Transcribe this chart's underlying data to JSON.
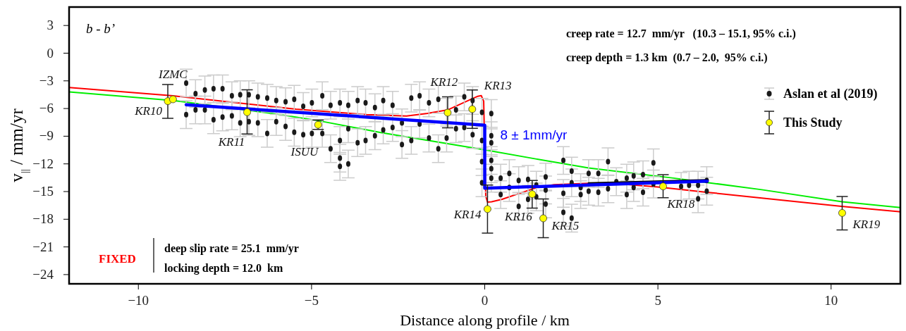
{
  "chart_data": {
    "type": "scatter",
    "xlabel": "Distance along profile / km",
    "ylabel": "v$_{||}$ / mm/yr",
    "xlim": [
      -12,
      12
    ],
    "ylim": [
      -25,
      5
    ],
    "xticks": [
      {
        "value": -10,
        "label": "−10"
      },
      {
        "value": -5,
        "label": "−5"
      },
      0,
      5,
      10
    ],
    "yticks": [
      3,
      0,
      {
        "value": -3,
        "label": "−3"
      },
      {
        "value": -6,
        "label": "−6"
      },
      {
        "value": -9,
        "label": "−9"
      },
      {
        "value": -12,
        "label": "−12"
      },
      {
        "value": -15,
        "label": "−15"
      },
      {
        "value": -18,
        "label": "−18"
      },
      {
        "value": -21,
        "label": "−21"
      },
      {
        "value": -24,
        "label": "−24"
      }
    ],
    "grid": false,
    "legend": "top right",
    "series": [
      {
        "type": "line",
        "color": "#00ee00",
        "x": [
          -12,
          -9,
          -6,
          -4.83,
          -3,
          -1.5,
          0,
          1.5,
          3,
          5.45,
          8,
          10.32,
          12
        ],
        "values": [
          -4.19,
          -5.13,
          -6.6,
          -7.3,
          -8.6,
          -9.54,
          -10.48,
          -11.48,
          -12.45,
          -13.54,
          -14.8,
          -16.1,
          -16.73
        ]
      },
      {
        "type": "line",
        "color": "#ff0000",
        "x": [
          -12,
          -9,
          -6.86,
          -5.45,
          -3.41,
          -2.26,
          -1.65,
          -1.07,
          -0.55,
          -0.2,
          -0.1,
          -0.03,
          0,
          0.03,
          0.08,
          0.2,
          0.5,
          1,
          1.5,
          2,
          3,
          4,
          5,
          6.4,
          8,
          10.3,
          12
        ],
        "values": [
          -3.73,
          -4.62,
          -5.49,
          -6.07,
          -6.66,
          -6.81,
          -6.53,
          -6.15,
          -5.26,
          -4.67,
          -4.6,
          -5.2,
          -10.5,
          -15.5,
          -16.15,
          -16.1,
          -15.84,
          -15.2,
          -14.57,
          -14.26,
          -14.1,
          -14.2,
          -14.5,
          -15.07,
          -15.7,
          -16.6,
          -17.19
        ]
      },
      {
        "name": "Aslan et al (2019)",
        "color": "#1a1a1a",
        "marker": "circle",
        "x": [
          -8.62,
          -8.62,
          -8.35,
          -8.35,
          -8.08,
          -8.08,
          -7.83,
          -7.83,
          -7.57,
          -7.57,
          -7.3,
          -7.3,
          -7.06,
          -7.06,
          -6.81,
          -6.81,
          -6.55,
          -6.55,
          -6.28,
          -6.28,
          -6.02,
          -6.02,
          -5.75,
          -5.75,
          -5.5,
          -5.5,
          -5.24,
          -5.24,
          -4.99,
          -4.99,
          -4.69,
          -4.69,
          -4.45,
          -4.45,
          -4.18,
          -4.18,
          -4.18,
          -4.18,
          -3.94,
          -3.94,
          -3.94,
          -3.67,
          -3.67,
          -3.44,
          -3.44,
          -3.17,
          -3.17,
          -2.93,
          -2.93,
          -2.66,
          -2.66,
          -2.39,
          -2.39,
          -2.12,
          -2.12,
          -1.88,
          -1.88,
          -1.61,
          -1.61,
          -1.34,
          -1.34,
          -1.1,
          -1.1,
          -0.83,
          -0.83,
          -0.59,
          -0.59,
          -0.35,
          -0.35,
          -0.08,
          -0.08,
          -0.08,
          -0.08,
          0.19,
          0.19,
          0.19,
          0.19,
          0.19,
          0.19,
          0.46,
          0.46,
          0.71,
          0.71,
          0.98,
          0.98,
          1.25,
          1.25,
          1.49,
          1.49,
          1.76,
          1.76,
          1.76,
          2.27,
          2.27,
          2.27,
          2.51,
          2.51,
          2.51,
          2.77,
          2.77,
          3.0,
          3.0,
          3.28,
          3.28,
          3.56,
          3.56,
          3.8,
          4.1,
          4.1,
          4.3,
          4.3,
          4.57,
          4.57,
          4.87,
          4.87,
          5.67,
          5.9,
          6.16,
          6.16,
          6.41,
          6.41
        ],
        "values": [
          -3.24,
          -6.66,
          -4.38,
          -6.15,
          -3.98,
          -6.15,
          -3.86,
          -7.22,
          -3.86,
          -6.92,
          -4.62,
          -6.8,
          -4.5,
          -7.55,
          -4.5,
          -7.42,
          -4.74,
          -7.55,
          -4.87,
          -8.7,
          -5.13,
          -7.42,
          -5.26,
          -7.94,
          -5.0,
          -8.57,
          -5.77,
          -8.83,
          -5.39,
          -8.7,
          -4.62,
          -8.7,
          -5.64,
          -10.36,
          -5.39,
          -9.46,
          -11.38,
          -12.27,
          -5.64,
          -8.19,
          -12.01,
          -5.13,
          -9.71,
          -5.39,
          -9.46,
          -5.9,
          -8.95,
          -5.13,
          -8.32,
          -5.64,
          -8.06,
          -7.55,
          -9.9,
          -4.87,
          -9.46,
          -4.62,
          -7.68,
          -5.39,
          -9.2,
          -5.0,
          -10.36,
          -6.41,
          -9.2,
          -6.15,
          -8.19,
          -4.74,
          -8.06,
          -5.13,
          -8.83,
          -6.41,
          -9.46,
          -11.76,
          -14.05,
          -6.54,
          -8.95,
          -9.71,
          -11.63,
          -12.52,
          -13.55,
          -13.55,
          -15.33,
          -13.04,
          -14.57,
          -13.8,
          -16.6,
          -13.68,
          -15.84,
          -14.3,
          -15.58,
          -13.42,
          -14.83,
          -16.35,
          -11.63,
          -15.2,
          -17.25,
          -12.78,
          -14.05,
          -17.88,
          -14.57,
          -15.33,
          -13.04,
          -14.96,
          -13.04,
          -15.07,
          -11.76,
          -14.7,
          -13.93,
          -13.55,
          -15.33,
          -13.3,
          -14.57,
          -13.17,
          -15.07,
          -11.89,
          -14.18,
          -14.44,
          -14.31,
          -14.31,
          -15.79,
          -13.8,
          -14.96
        ],
        "errors": [
          1.5,
          1.5,
          1.5,
          1.5,
          1.5,
          1.5,
          1.5,
          1.5,
          1.5,
          1.5,
          1.5,
          1.5,
          1.5,
          1.5,
          1.5,
          1.5,
          1.5,
          1.5,
          1.5,
          1.5,
          1.5,
          1.5,
          1.5,
          1.5,
          1.5,
          1.5,
          1.5,
          1.5,
          1.5,
          1.5,
          1.5,
          1.5,
          1.5,
          1.5,
          1.5,
          1.5,
          1.5,
          1.5,
          1.5,
          1.5,
          1.5,
          1.5,
          1.5,
          1.5,
          1.5,
          1.5,
          1.5,
          1.5,
          1.5,
          1.5,
          1.5,
          1.5,
          1.5,
          1.5,
          1.5,
          1.5,
          1.5,
          1.5,
          1.5,
          1.5,
          1.5,
          1.5,
          1.5,
          1.5,
          1.5,
          1.5,
          1.5,
          1.5,
          1.5,
          1.5,
          1.5,
          1.5,
          1.5,
          1.5,
          1.5,
          1.5,
          1.5,
          1.5,
          1.5,
          1.5,
          1.5,
          1.5,
          1.5,
          1.5,
          1.5,
          1.5,
          1.5,
          1.5,
          1.5,
          1.5,
          1.5,
          1.5,
          1.5,
          1.5,
          1.5,
          1.5,
          1.5,
          1.5,
          1.5,
          1.5,
          1.5,
          1.5,
          1.5,
          1.5,
          1.5,
          1.5,
          1.5,
          1.5,
          1.5,
          1.5,
          1.5,
          1.5,
          1.5,
          1.5,
          1.5,
          1.5,
          1.5,
          1.5,
          1.5,
          1.5,
          1.5
        ]
      },
      {
        "type": "line",
        "color": "#000000",
        "x": [
          3.0,
          6.42
        ],
        "values": [
          -14.1,
          -13.75
        ]
      },
      {
        "type": "line",
        "color": "#0000ff",
        "x": [
          -8.62,
          0,
          0,
          6.42
        ],
        "values": [
          -5.59,
          -7.8,
          -14.64,
          -13.88
        ]
      },
      {
        "name": "This Study",
        "color": "#ffff00",
        "marker": "circle",
        "x": [
          -9.15,
          -9.0,
          -6.86,
          -4.81,
          -1.07,
          -0.36,
          0.08,
          1.37,
          1.69,
          5.15,
          10.32
        ],
        "values": [
          -5.2,
          -5.0,
          -6.4,
          -7.76,
          -6.45,
          -6.07,
          -16.9,
          -15.28,
          -17.9,
          -14.44,
          -17.32
        ],
        "errors": [
          [
            -7.07,
            -3.4
          ],
          null,
          [
            -8.75,
            -3.96
          ],
          0.5,
          [
            -8.1,
            -4.73
          ],
          [
            -8.14,
            -3.98
          ],
          2.6,
          [
            -16.8,
            -13.8
          ],
          [
            -20.0,
            -15.8
          ],
          [
            -15.66,
            -13.16
          ],
          [
            -19.16,
            -15.53
          ]
        ]
      }
    ],
    "annotations": [
      "b - b’",
      "creep rate = 12.7  mm/yr   (10.3 – 15.1, 95% c.i.)",
      "creep depth = 1.3 km  (0.7 – 2.0,  95% c.i.)",
      "FIXED",
      "deep slip rate = 25.1  mm/yr",
      "locking depth = 12.0  km",
      {
        "text": "8 ± 1mm/yr",
        "x": 0,
        "y": -8.8
      },
      {
        "text": "KR10",
        "x": -9.15,
        "y": -5.2
      },
      {
        "text": "IZMC",
        "x": -9.0,
        "y": -5.0
      },
      {
        "text": "KR11",
        "x": -6.86,
        "y": -6.4
      },
      {
        "text": "ISUU",
        "x": -4.81,
        "y": -7.76
      },
      {
        "text": "KR12",
        "x": -1.07,
        "y": -6.45
      },
      {
        "text": "KR13",
        "x": -0.36,
        "y": -6.07
      },
      {
        "text": "KR14",
        "x": 0.08,
        "y": -16.9
      },
      {
        "text": "KR16",
        "x": 1.37,
        "y": -15.28
      },
      {
        "text": "KR15",
        "x": 1.69,
        "y": -17.9
      },
      {
        "text": "KR18",
        "x": 5.15,
        "y": -14.44
      },
      {
        "text": "KR19",
        "x": 10.32,
        "y": -17.32
      }
    ]
  }
}
